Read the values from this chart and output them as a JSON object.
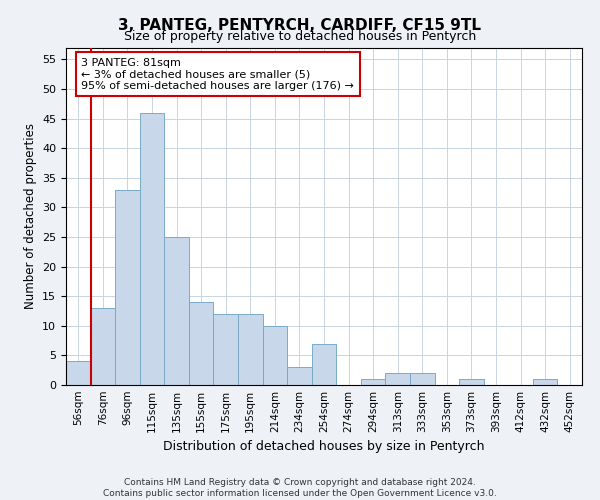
{
  "title": "3, PANTEG, PENTYRCH, CARDIFF, CF15 9TL",
  "subtitle": "Size of property relative to detached houses in Pentyrch",
  "xlabel": "Distribution of detached houses by size in Pentyrch",
  "ylabel": "Number of detached properties",
  "bar_color": "#c8d8ea",
  "bar_edge_color": "#7aaac8",
  "bar_categories": [
    "56sqm",
    "76sqm",
    "96sqm",
    "115sqm",
    "135sqm",
    "155sqm",
    "175sqm",
    "195sqm",
    "214sqm",
    "234sqm",
    "254sqm",
    "274sqm",
    "294sqm",
    "313sqm",
    "333sqm",
    "353sqm",
    "373sqm",
    "393sqm",
    "412sqm",
    "432sqm",
    "452sqm"
  ],
  "bar_values": [
    4,
    13,
    33,
    46,
    25,
    14,
    12,
    12,
    10,
    3,
    7,
    0,
    1,
    2,
    2,
    0,
    1,
    0,
    0,
    1,
    0
  ],
  "ylim": [
    0,
    57
  ],
  "yticks": [
    0,
    5,
    10,
    15,
    20,
    25,
    30,
    35,
    40,
    45,
    50,
    55
  ],
  "vline_color": "#cc0000",
  "annotation_text": "3 PANTEG: 81sqm\n← 3% of detached houses are smaller (5)\n95% of semi-detached houses are larger (176) →",
  "annotation_box_color": "#ffffff",
  "annotation_box_edgecolor": "#cc0000",
  "footer_line1": "Contains HM Land Registry data © Crown copyright and database right 2024.",
  "footer_line2": "Contains public sector information licensed under the Open Government Licence v3.0.",
  "background_color": "#eef2f7",
  "plot_bg_color": "#ffffff",
  "grid_color": "#c8d4e0"
}
